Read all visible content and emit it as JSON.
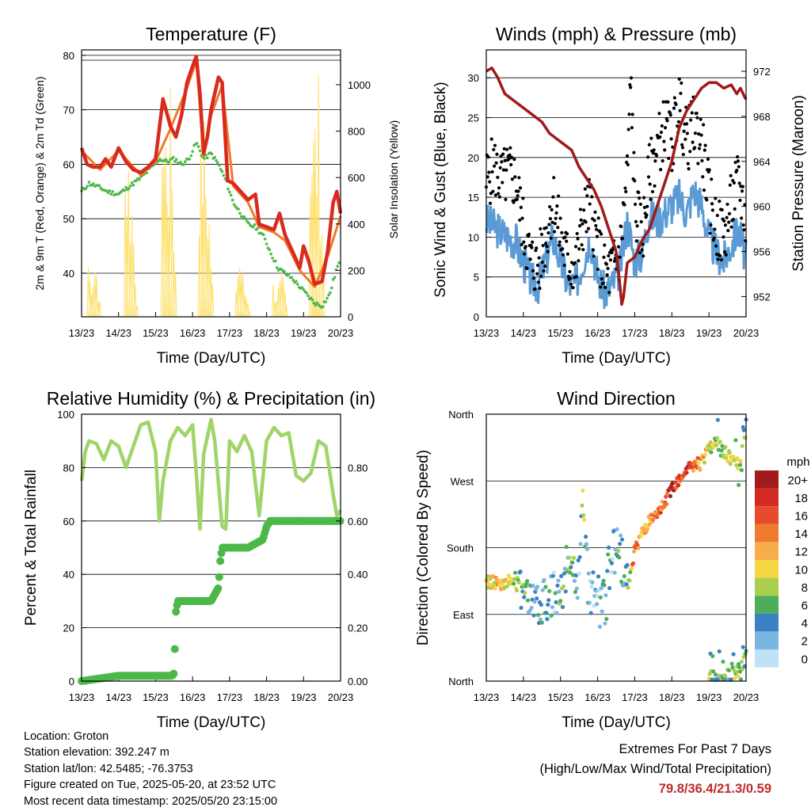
{
  "colors": {
    "temp2m": "#d82a1e",
    "temp9m": "#f07a2a",
    "dewpoint": "#4db84a",
    "solar": "#fde06b",
    "wind": "#5b9bd5",
    "gust": "#000000",
    "pressure": "#a01a1a",
    "rh": "#a0d468",
    "precip": "#4db84a",
    "extremes": "#c0282a"
  },
  "time_ticks": [
    "13/23",
    "14/23",
    "15/23",
    "16/23",
    "17/23",
    "18/23",
    "19/23",
    "20/23"
  ],
  "chart_data": [
    {
      "type": "line",
      "title": "Temperature (F)",
      "xlabel": "Time (Day/UTC)",
      "ylabel": "2m & 9m T (Red, Orange) & 2m Td (Green)",
      "y2label": "Solar Insolation (Yellow)",
      "ylim": [
        32,
        81
      ],
      "y2lim": [
        0,
        1150
      ],
      "yticks": [
        40,
        50,
        60,
        70,
        80
      ],
      "y2ticks": [
        0,
        200,
        400,
        600,
        800,
        1000
      ],
      "grid": true,
      "series": [
        {
          "axis": "left",
          "style": "thick",
          "color_key": "temp2m",
          "x": [
            0,
            0.15,
            0.3,
            0.5,
            0.65,
            0.8,
            1.0,
            1.2,
            1.4,
            1.6,
            1.8,
            2.0,
            2.2,
            2.4,
            2.55,
            2.7,
            2.85,
            3.0,
            3.1,
            3.2,
            3.3,
            3.4,
            3.5,
            3.7,
            3.8,
            3.95,
            4.1,
            4.3,
            4.5,
            4.7,
            4.8,
            5.0,
            5.2,
            5.35,
            5.5,
            5.7,
            5.9,
            6.0,
            6.15,
            6.3,
            6.5,
            6.65,
            6.8,
            6.9,
            7.0
          ],
          "y": [
            63,
            60,
            59.5,
            59.5,
            61,
            59.5,
            63,
            60.5,
            59,
            58.5,
            59.5,
            61,
            72,
            67,
            65,
            69,
            75,
            78,
            79.8,
            73,
            62,
            65,
            70,
            76,
            75,
            57,
            56.5,
            55,
            53.5,
            54.5,
            49,
            48.5,
            48,
            51,
            47,
            44,
            41,
            45,
            42,
            38,
            38.5,
            44,
            53,
            55,
            51
          ]
        },
        {
          "axis": "left",
          "style": "thin",
          "color_key": "temp9m",
          "x": [
            0,
            0.5,
            1.0,
            1.6,
            2.0,
            2.4,
            2.85,
            3.1,
            3.3,
            3.5,
            3.8,
            4.1,
            4.5,
            4.8,
            5.2,
            5.5,
            5.9,
            6.3,
            6.65,
            7.0
          ],
          "y": [
            62.5,
            59,
            62.5,
            58,
            60.5,
            66.5,
            74,
            79,
            61.5,
            69,
            74.5,
            56,
            53,
            48.5,
            47.5,
            46,
            40.5,
            37.5,
            43,
            50.5
          ]
        },
        {
          "axis": "left",
          "style": "dotted",
          "color_key": "dewpoint",
          "x": [
            0,
            0.2,
            0.4,
            0.7,
            1.0,
            1.3,
            1.6,
            1.9,
            2.1,
            2.3,
            2.5,
            2.7,
            2.9,
            3.1,
            3.3,
            3.5,
            3.7,
            3.9,
            4.1,
            4.3,
            4.5,
            4.7,
            4.9,
            5.1,
            5.3,
            5.5,
            5.7,
            5.9,
            6.1,
            6.3,
            6.5,
            6.7,
            6.9,
            7.0
          ],
          "y": [
            55,
            56.5,
            56,
            55,
            54.5,
            56,
            57.5,
            59.5,
            61,
            60.5,
            61,
            60,
            61,
            64,
            61,
            62,
            60,
            57,
            53,
            51,
            49,
            48.5,
            47,
            44,
            41,
            40,
            39,
            37.5,
            36,
            34.5,
            34,
            36,
            41,
            42
          ]
        },
        {
          "axis": "right",
          "style": "solar",
          "color_key": "solar",
          "x": [
            0.15,
            0.3,
            0.4,
            0.55,
            0.7,
            1.15,
            1.3,
            1.4,
            1.55,
            1.7,
            2.15,
            2.3,
            2.45,
            2.6,
            2.75,
            3.15,
            3.3,
            3.45,
            3.6,
            3.75,
            4.15,
            4.3,
            4.45,
            4.6,
            4.75,
            5.15,
            5.3,
            5.45,
            5.6,
            5.75,
            6.15,
            6.3,
            6.45,
            6.6,
            6.75
          ],
          "y": [
            0,
            420,
            200,
            300,
            0,
            0,
            760,
            850,
            550,
            0,
            0,
            1070,
            880,
            960,
            0,
            0,
            800,
            950,
            600,
            0,
            0,
            300,
            250,
            150,
            0,
            0,
            180,
            120,
            200,
            0,
            0,
            1130,
            900,
            1050,
            0
          ]
        }
      ]
    },
    {
      "type": "scatter",
      "title": "Winds (mph) & Pressure (mb)",
      "xlabel": "Time (Day/UTC)",
      "ylabel": "Sonic Wind & Gust (Blue, Black)",
      "y2label": "Station Pressure (Maroon)",
      "ylim": [
        0,
        33.5
      ],
      "y2lim": [
        950.2,
        973.9
      ],
      "yticks": [
        0,
        5,
        10,
        15,
        20,
        25,
        30
      ],
      "y2ticks": [
        952,
        956,
        960,
        964,
        968,
        972
      ],
      "grid": true,
      "series": [
        {
          "axis": "left",
          "style": "filled",
          "color_key": "wind",
          "x": [
            0,
            0.3,
            0.6,
            0.8,
            0.9,
            1.0,
            1.2,
            1.4,
            1.6,
            1.8,
            2.0,
            2.2,
            2.4,
            2.6,
            2.8,
            3.0,
            3.2,
            3.4,
            3.6,
            3.8,
            4.0,
            4.2,
            4.4,
            4.6,
            4.8,
            5.0,
            5.2,
            5.4,
            5.6,
            5.8,
            6.0,
            6.2,
            6.4,
            6.6,
            6.8,
            7.0
          ],
          "y": [
            12,
            11,
            10,
            9.5,
            8,
            7,
            4.5,
            4,
            7,
            10,
            7,
            4,
            4,
            7,
            10,
            5,
            3,
            4,
            6,
            12,
            7,
            8,
            13,
            12,
            13,
            14,
            15,
            13,
            16,
            14,
            10,
            8,
            7,
            9,
            11,
            7
          ]
        },
        {
          "axis": "left",
          "style": "dots",
          "color_key": "gust",
          "x": [
            0,
            0.2,
            0.4,
            0.6,
            0.8,
            0.9,
            1.0,
            1.2,
            1.4,
            1.6,
            1.8,
            2.0,
            2.2,
            2.4,
            2.6,
            2.8,
            3.0,
            3.2,
            3.4,
            3.6,
            3.8,
            3.9,
            4.0,
            4.2,
            4.4,
            4.6,
            4.8,
            5.0,
            5.2,
            5.4,
            5.6,
            5.8,
            6.0,
            6.2,
            6.4,
            6.6,
            6.8,
            7.0
          ],
          "y": [
            17,
            19,
            17,
            18,
            17,
            14,
            11,
            7,
            6,
            10,
            15,
            10,
            7,
            6,
            12,
            14,
            9,
            5,
            6,
            8,
            18,
            30,
            14,
            10,
            18,
            21,
            24,
            22,
            27,
            22,
            24,
            22,
            15,
            11,
            10,
            14,
            17,
            12
          ]
        },
        {
          "axis": "right",
          "style": "line",
          "color_key": "pressure",
          "x": [
            0,
            0.15,
            0.3,
            0.5,
            0.7,
            0.9,
            1.1,
            1.3,
            1.5,
            1.7,
            1.9,
            2.1,
            2.3,
            2.5,
            2.7,
            2.9,
            3.1,
            3.3,
            3.5,
            3.6,
            3.65,
            3.7,
            3.8,
            4.0,
            4.2,
            4.4,
            4.6,
            4.8,
            5.0,
            5.2,
            5.4,
            5.6,
            5.8,
            6.0,
            6.2,
            6.4,
            6.6,
            6.75,
            6.85,
            6.95,
            7.0
          ],
          "y": [
            972,
            972.3,
            971.5,
            970,
            969.5,
            969,
            968.5,
            968,
            967.5,
            966.5,
            966,
            965.5,
            965,
            963.5,
            962.5,
            961.5,
            960,
            958,
            956,
            953,
            951.3,
            952,
            955,
            955.5,
            957,
            958,
            960,
            962,
            964,
            967,
            968.5,
            969.5,
            970.5,
            971,
            971,
            970.5,
            970.8,
            970,
            970.5,
            969.8,
            969.5
          ]
        }
      ]
    },
    {
      "type": "line",
      "title": "Relative Humidity (%) & Precipitation (in)",
      "xlabel": "Time (Day/UTC)",
      "ylabel": "Percent & Total Rainfall",
      "ylim": [
        0,
        100
      ],
      "y2lim": [
        0,
        1.0
      ],
      "yticks": [
        0,
        20,
        40,
        60,
        80,
        100
      ],
      "y2ticks": [
        "0.00",
        "0.20",
        "0.40",
        "0.60",
        "0.80"
      ],
      "grid": true,
      "series": [
        {
          "axis": "left",
          "style": "thick",
          "color_key": "rh",
          "x": [
            0,
            0.1,
            0.2,
            0.4,
            0.6,
            0.8,
            1.0,
            1.2,
            1.4,
            1.6,
            1.8,
            2.0,
            2.1,
            2.2,
            2.4,
            2.6,
            2.8,
            3.0,
            3.1,
            3.2,
            3.3,
            3.5,
            3.6,
            3.8,
            3.9,
            4.0,
            4.2,
            4.4,
            4.6,
            4.8,
            5.0,
            5.2,
            5.4,
            5.6,
            5.8,
            6.0,
            6.2,
            6.4,
            6.6,
            6.8,
            6.9,
            7.0
          ],
          "y": [
            75,
            86,
            90,
            89,
            83,
            90,
            88,
            80,
            88,
            96,
            97,
            86,
            60,
            75,
            90,
            95,
            92,
            96,
            78,
            57,
            85,
            98,
            90,
            58,
            57,
            90,
            86,
            92,
            86,
            62,
            90,
            95,
            92,
            93,
            77,
            75,
            78,
            90,
            88,
            70,
            62,
            64
          ]
        },
        {
          "axis": "right",
          "style": "dots",
          "color_key": "precip",
          "x": [
            0,
            0.5,
            1.0,
            1.5,
            2.0,
            2.45,
            2.5,
            2.52,
            2.55,
            2.6,
            3.0,
            3.5,
            3.7,
            3.75,
            3.8,
            4.0,
            4.5,
            4.9,
            5.0,
            5.1,
            5.5,
            6.0,
            6.5,
            7.0
          ],
          "y": [
            0,
            0.01,
            0.02,
            0.02,
            0.02,
            0.02,
            0.03,
            0.12,
            0.26,
            0.3,
            0.3,
            0.3,
            0.35,
            0.45,
            0.5,
            0.5,
            0.5,
            0.53,
            0.58,
            0.6,
            0.6,
            0.6,
            0.6,
            0.6
          ]
        }
      ]
    },
    {
      "type": "scatter",
      "title": "Wind Direction",
      "xlabel": "Time (Day/UTC)",
      "ylabel": "Direction (Colored By Speed)",
      "yticks": [
        "North",
        "East",
        "South",
        "West",
        "North"
      ],
      "ylim": [
        0,
        360
      ],
      "grid": true,
      "legend": {
        "title": "mph",
        "placement": "right",
        "labels": [
          "20+",
          "18",
          "16",
          "14",
          "12",
          "10",
          "8",
          "6",
          "4",
          "2",
          "0"
        ],
        "colors": [
          "#a01c1c",
          "#d42a24",
          "#e84a2c",
          "#f07a30",
          "#f7ad48",
          "#f5d745",
          "#a9cf4c",
          "#4ead5b",
          "#3b82c4",
          "#7bb6e3",
          "#bfe2f7"
        ]
      },
      "series": [
        {
          "name": "",
          "x": [
            0,
            0.3,
            0.6,
            0.9,
            1.2,
            1.4,
            1.6,
            1.8,
            2.0,
            2.15,
            2.3,
            2.5,
            2.6,
            2.75,
            3.0,
            3.2,
            3.35,
            3.55,
            3.8,
            4.0,
            4.2,
            4.4,
            4.6,
            4.8,
            5.0,
            5.2,
            5.4,
            5.6,
            5.8,
            6.0,
            6.2,
            6.4,
            6.6,
            6.8,
            7.0
          ],
          "y": [
            135,
            132,
            135,
            130,
            125,
            110,
            115,
            120,
            105,
            155,
            165,
            140,
            250,
            120,
            110,
            100,
            170,
            180,
            130,
            175,
            200,
            215,
            220,
            240,
            260,
            272,
            285,
            290,
            295,
            315,
            320,
            310,
            300,
            290,
            330
          ],
          "speeds": [
            10,
            12,
            9,
            6,
            4,
            5,
            3,
            2,
            6,
            4,
            5,
            3,
            8,
            3,
            2,
            4,
            3,
            5,
            4,
            16,
            10,
            12,
            14,
            15,
            18,
            16,
            17,
            15,
            12,
            10,
            6,
            8,
            10,
            7,
            6
          ]
        },
        {
          "name": "",
          "x": [
            6.0,
            6.2,
            6.4,
            6.6,
            6.8,
            6.9,
            7.0
          ],
          "y": [
            5,
            8,
            3,
            10,
            12,
            20,
            40
          ],
          "speeds": [
            8,
            4,
            6,
            5,
            8,
            6,
            5
          ]
        }
      ]
    }
  ],
  "meta": {
    "location": "Location: Groton",
    "elevation": "Station elevation: 392.247 m",
    "latlon": "Station lat/lon: 42.5485; -76.3753",
    "created": "Figure created on Tue, 2025-05-20, at 23:52 UTC",
    "timestamp": "Most recent data timestamp: 2025/05/20 23:15:00"
  },
  "extremes": {
    "title": "Extremes For Past 7 Days",
    "subtitle": "(High/Low/Max Wind/Total Precipitation)",
    "values": "79.8/36.4/21.3/0.59"
  }
}
